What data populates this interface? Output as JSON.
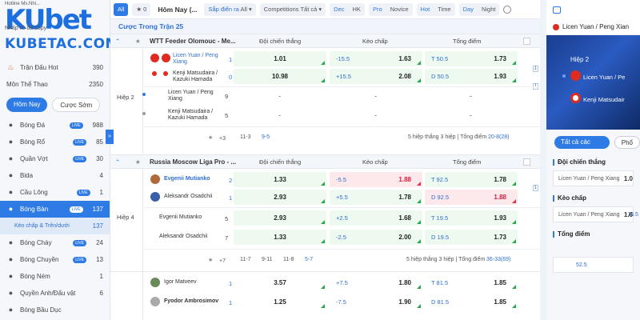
{
  "logo": {
    "top": "Hotline Ms.Nhi...",
    "brand": "KUbet",
    "site": "KUBETAC.COM",
    "note": "Nhấp ID đã copy"
  },
  "sidebar": {
    "hot": {
      "label": "Trận Đấu Hot",
      "count": "390"
    },
    "sports": {
      "label": "Môn Thể Thao",
      "count": "2350"
    },
    "tabs": [
      "Hôm Nay",
      "Cược Sớm"
    ],
    "items": [
      {
        "label": "Bóng Đá",
        "live": "LIVE",
        "count": "988",
        "icon": "soccer-ball-icon"
      },
      {
        "label": "Bóng Rổ",
        "live": "LIVE",
        "count": "85",
        "icon": "basketball-icon"
      },
      {
        "label": "Quần Vợt",
        "live": "LIVE",
        "count": "30",
        "icon": "tennis-ball-icon"
      },
      {
        "label": "Bida",
        "live": "",
        "count": "4",
        "icon": "billiards-ball-icon"
      },
      {
        "label": "Cầu Lông",
        "live": "LIVE",
        "count": "1",
        "icon": "shuttlecock-icon"
      },
      {
        "label": "Bóng Bàn",
        "live": "LIVE",
        "count": "137",
        "icon": "table-tennis-icon"
      },
      {
        "label": "Kèo chấp & Trên/dưới",
        "live": "",
        "count": "137",
        "icon": ""
      },
      {
        "label": "Bóng Chày",
        "live": "LIVE",
        "count": "24",
        "icon": "baseball-icon"
      },
      {
        "label": "Bóng Chuyền",
        "live": "LIVE",
        "count": "13",
        "icon": "volleyball-icon"
      },
      {
        "label": "Bóng Ném",
        "live": "",
        "count": "1",
        "icon": "handball-icon"
      },
      {
        "label": "Quyền Anh/Đấu vật",
        "live": "",
        "count": "6",
        "icon": "boxing-glove-icon"
      },
      {
        "label": "Bóng Bầu Dục",
        "live": "",
        "count": "",
        "icon": "rugby-ball-icon"
      }
    ]
  },
  "topbar": {
    "all": "All",
    "fav": "0",
    "today": "Hôm Nay",
    "today_suffix": "(...",
    "sort_label": "Sắp điển ra",
    "sort_val": "All",
    "comp_label": "Competitions",
    "comp_val": "Tất cả",
    "odds": [
      "Dec",
      "HK"
    ],
    "level": [
      "Pro",
      "Novice"
    ],
    "order": [
      "Hot",
      "Time"
    ],
    "theme": [
      "Day",
      "Night"
    ]
  },
  "main": {
    "subheader": "Cược Trong Trận 25",
    "headers": {
      "h1": "Đội chiến thắng",
      "h2": "Kèo chấp",
      "h3": "Tổng điểm"
    },
    "league1": {
      "name": "WTT Feeder Olomouc - Me...",
      "half": "Hiệp 2",
      "rows": [
        {
          "team": "Licen Yuan / Peng Xiang",
          "score": "1",
          "win": "1.01",
          "hcap_l": "-15.5",
          "hcap_v": "1.63",
          "tot_l": "T 50.5",
          "tot_v": "1.73"
        },
        {
          "team": "Kenji Matsudaira / Kazuki Hamada",
          "score": "0",
          "win": "10.98",
          "hcap_l": "+15.5",
          "hcap_v": "2.08",
          "tot_l": "D 50.5",
          "tot_v": "1.93"
        },
        {
          "team": "Licen Yuan / Peng Xiang",
          "score": "9",
          "win": "-",
          "hcap_l": "",
          "hcap_v": "-",
          "tot_l": "",
          "tot_v": "-"
        },
        {
          "team": "Kenji Matsudaira / Kazuki Hamada",
          "score": "5",
          "win": "-",
          "hcap_l": "",
          "hcap_v": "-",
          "tot_l": "",
          "tot_v": "-"
        }
      ],
      "more": "+3",
      "sets": [
        "11-3",
        "9-5"
      ],
      "footer": "5 hiệp thắng 3 hiệp | Tổng điểm",
      "footer_v": "20-8(28)"
    },
    "league2": {
      "name": "Russia Moscow Liga Pro - ...",
      "half": "Hiệp 4",
      "rows": [
        {
          "team": "Evgenii Mutianko",
          "score": "2",
          "win": "1.33",
          "hcap_l": "-5.5",
          "hcap_v": "1.88",
          "tot_l": "T 92.5",
          "tot_v": "1.78"
        },
        {
          "team": "Aleksandr Osadchii",
          "score": "1",
          "win": "2.93",
          "hcap_l": "+5.5",
          "hcap_v": "1.78",
          "tot_l": "D 92.5",
          "tot_v": "1.88"
        },
        {
          "team": "Evgenii Mutianko",
          "score": "5",
          "win": "2.93",
          "hcap_l": "+2.5",
          "hcap_v": "1.68",
          "tot_l": "T 19.5",
          "tot_v": "1.93"
        },
        {
          "team": "Aleksandr Osadchii",
          "score": "7",
          "win": "1.33",
          "hcap_l": "-2.5",
          "hcap_v": "2.00",
          "tot_l": "D 19.5",
          "tot_v": "1.73"
        }
      ],
      "more": "+7",
      "sets": [
        "11-7",
        "9-11",
        "11-8",
        "5-7"
      ],
      "footer": "5 hiệp thắng 3 hiệp | Tổng điểm",
      "footer_v": "36-33(69)"
    },
    "league3": {
      "rows": [
        {
          "team": "Igor Matveev",
          "score": "1",
          "win": "3.57",
          "hcap_l": "+7.5",
          "hcap_v": "1.80",
          "tot_l": "T 81.5",
          "tot_v": "1.85"
        },
        {
          "team": "Fyodor Ambrosimov",
          "score": "1",
          "win": "1.25",
          "hcap_l": "-7.5",
          "hcap_v": "1.90",
          "tot_l": "D 81.5",
          "tot_v": "1.85"
        }
      ]
    }
  },
  "right": {
    "match": "Licen Yuan / Peng Xian",
    "half": "Hiệp 2",
    "p1": "Licen Yuan / Pe",
    "p2": "Kenji Matsudair",
    "tabs": [
      "Tất cả các cược",
      "Phổ"
    ],
    "sec1": "Đội chiến thắng",
    "sec1_team": "Licen Yuan / Peng Xiang",
    "sec1_val": "1.0",
    "sec2": "Kèo chấp",
    "sec2_team": "Licen Yuan / Peng Xiang",
    "sec2_line": "-15.5",
    "sec2_val": "1.6",
    "sec3": "Tổng điểm",
    "sec3_val": "52.5"
  }
}
